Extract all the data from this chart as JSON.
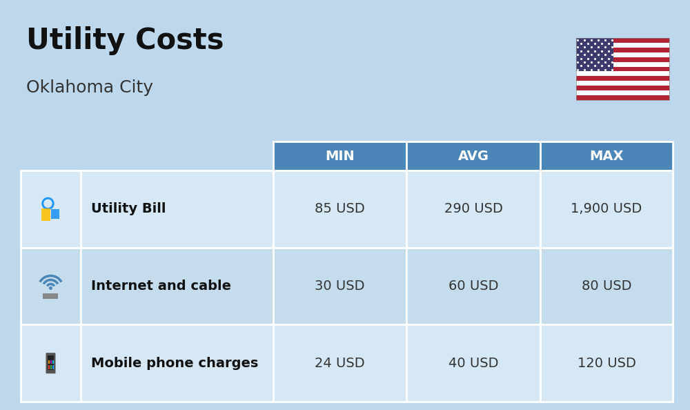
{
  "title": "Utility Costs",
  "subtitle": "Oklahoma City",
  "background_color": "#bdd7ec",
  "header_bg_color": "#4a86b8",
  "header_text_color": "#ffffff",
  "row_bg_colors": [
    "#d6e8f5",
    "#c5dced"
  ],
  "table_border_color": "#ffffff",
  "rows": [
    {
      "label": "Utility Bill",
      "min": "85 USD",
      "avg": "290 USD",
      "max": "1,900 USD",
      "icon": "utility"
    },
    {
      "label": "Internet and cable",
      "min": "30 USD",
      "avg": "60 USD",
      "max": "80 USD",
      "icon": "internet"
    },
    {
      "label": "Mobile phone charges",
      "min": "24 USD",
      "avg": "40 USD",
      "max": "120 USD",
      "icon": "mobile"
    }
  ],
  "title_fontsize": 30,
  "subtitle_fontsize": 18,
  "header_fontsize": 14,
  "cell_fontsize": 14,
  "label_fontsize": 14,
  "flag_stripes": [
    "#B22234",
    "#FFFFFF",
    "#B22234",
    "#FFFFFF",
    "#B22234",
    "#FFFFFF",
    "#B22234",
    "#FFFFFF",
    "#B22234",
    "#FFFFFF",
    "#B22234",
    "#FFFFFF",
    "#B22234"
  ],
  "flag_canton_color": "#3C3B6E",
  "title_color": "#111111",
  "subtitle_color": "#333333",
  "label_color": "#111111",
  "cell_color": "#333333"
}
